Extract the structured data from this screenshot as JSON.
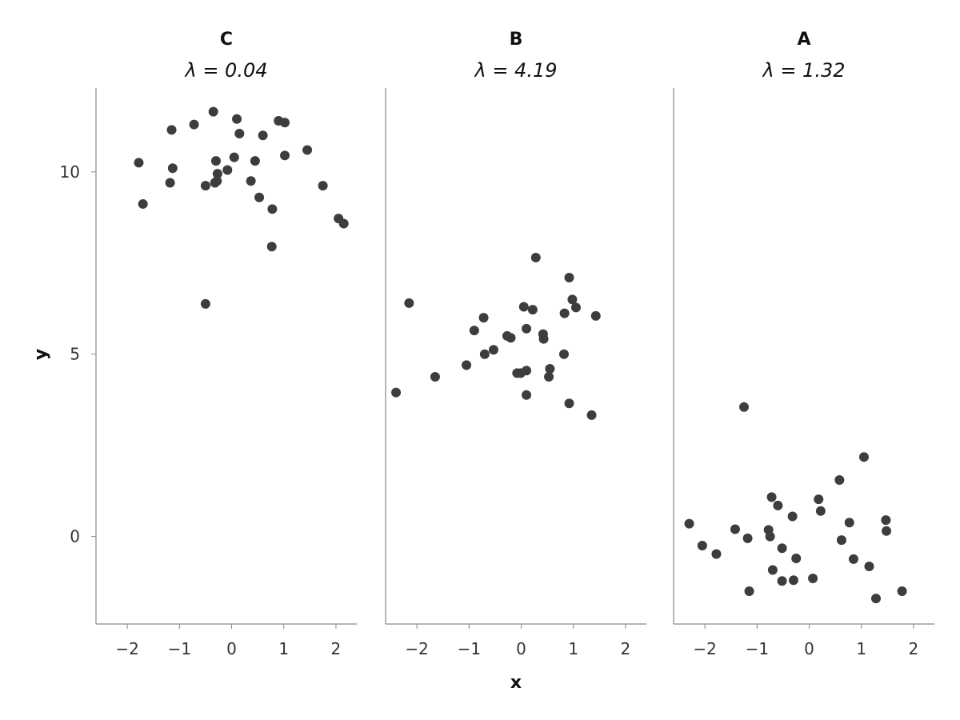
{
  "chart_data": {
    "type": "scatter",
    "xlabel": "x",
    "ylabel": "y",
    "xlim": [
      -2.6,
      2.4
    ],
    "ylim": [
      -2.4,
      12.3
    ],
    "xticks": [
      -2,
      -1,
      0,
      1,
      2
    ],
    "yticks": [
      0,
      5,
      10
    ],
    "xtick_labels": [
      "−2",
      "−1",
      "0",
      "1",
      "2"
    ],
    "ytick_labels": [
      "0",
      "5",
      "10"
    ],
    "grid": false,
    "point_color": "#3d3d3d",
    "axis_color": "#8a8a8a",
    "panels": [
      {
        "title": "C",
        "subtitle": "λ = 0.04",
        "points": [
          [
            -0.35,
            11.65
          ],
          [
            0.1,
            11.45
          ],
          [
            0.9,
            11.4
          ],
          [
            1.02,
            11.35
          ],
          [
            -0.72,
            11.3
          ],
          [
            -1.15,
            11.15
          ],
          [
            0.15,
            11.05
          ],
          [
            0.6,
            11.0
          ],
          [
            1.45,
            10.6
          ],
          [
            1.02,
            10.45
          ],
          [
            0.05,
            10.4
          ],
          [
            -0.3,
            10.3
          ],
          [
            0.45,
            10.3
          ],
          [
            -1.78,
            10.25
          ],
          [
            -1.13,
            10.1
          ],
          [
            -0.08,
            10.05
          ],
          [
            -0.27,
            9.95
          ],
          [
            0.37,
            9.75
          ],
          [
            -0.28,
            9.75
          ],
          [
            -0.32,
            9.7
          ],
          [
            -1.18,
            9.7
          ],
          [
            -0.5,
            9.62
          ],
          [
            1.75,
            9.62
          ],
          [
            0.53,
            9.3
          ],
          [
            -1.7,
            9.12
          ],
          [
            0.78,
            8.98
          ],
          [
            2.05,
            8.72
          ],
          [
            2.15,
            8.58
          ],
          [
            0.77,
            7.95
          ],
          [
            -0.5,
            6.38
          ]
        ]
      },
      {
        "title": "B",
        "subtitle": "λ = 4.19",
        "points": [
          [
            0.28,
            7.65
          ],
          [
            0.92,
            7.1
          ],
          [
            0.98,
            6.5
          ],
          [
            -2.15,
            6.4
          ],
          [
            0.05,
            6.3
          ],
          [
            1.05,
            6.28
          ],
          [
            0.22,
            6.22
          ],
          [
            0.83,
            6.12
          ],
          [
            1.43,
            6.05
          ],
          [
            -0.72,
            6.0
          ],
          [
            0.1,
            5.7
          ],
          [
            -0.9,
            5.65
          ],
          [
            0.42,
            5.55
          ],
          [
            -0.27,
            5.5
          ],
          [
            -0.2,
            5.45
          ],
          [
            0.43,
            5.42
          ],
          [
            -0.53,
            5.12
          ],
          [
            -0.7,
            5.0
          ],
          [
            0.82,
            5.0
          ],
          [
            -1.05,
            4.7
          ],
          [
            0.55,
            4.6
          ],
          [
            0.1,
            4.55
          ],
          [
            -0.08,
            4.48
          ],
          [
            -0.01,
            4.48
          ],
          [
            -1.65,
            4.38
          ],
          [
            0.53,
            4.38
          ],
          [
            -2.4,
            3.95
          ],
          [
            0.1,
            3.88
          ],
          [
            0.92,
            3.65
          ],
          [
            1.35,
            3.33
          ]
        ]
      },
      {
        "title": "A",
        "subtitle": "λ = 1.32",
        "points": [
          [
            -1.25,
            3.55
          ],
          [
            1.05,
            2.18
          ],
          [
            0.58,
            1.55
          ],
          [
            -0.72,
            1.08
          ],
          [
            0.18,
            1.02
          ],
          [
            -0.6,
            0.85
          ],
          [
            0.22,
            0.7
          ],
          [
            -0.32,
            0.55
          ],
          [
            1.47,
            0.45
          ],
          [
            -2.3,
            0.35
          ],
          [
            0.77,
            0.38
          ],
          [
            -1.42,
            0.2
          ],
          [
            -0.78,
            0.18
          ],
          [
            1.48,
            0.15
          ],
          [
            -0.75,
            0.0
          ],
          [
            -1.18,
            -0.05
          ],
          [
            0.62,
            -0.1
          ],
          [
            -2.05,
            -0.25
          ],
          [
            -0.52,
            -0.32
          ],
          [
            -1.78,
            -0.48
          ],
          [
            -0.25,
            -0.6
          ],
          [
            0.85,
            -0.62
          ],
          [
            1.15,
            -0.82
          ],
          [
            -0.7,
            -0.92
          ],
          [
            0.07,
            -1.15
          ],
          [
            -0.3,
            -1.2
          ],
          [
            -0.52,
            -1.22
          ],
          [
            -1.15,
            -1.5
          ],
          [
            1.78,
            -1.5
          ],
          [
            1.28,
            -1.7
          ]
        ]
      }
    ]
  }
}
